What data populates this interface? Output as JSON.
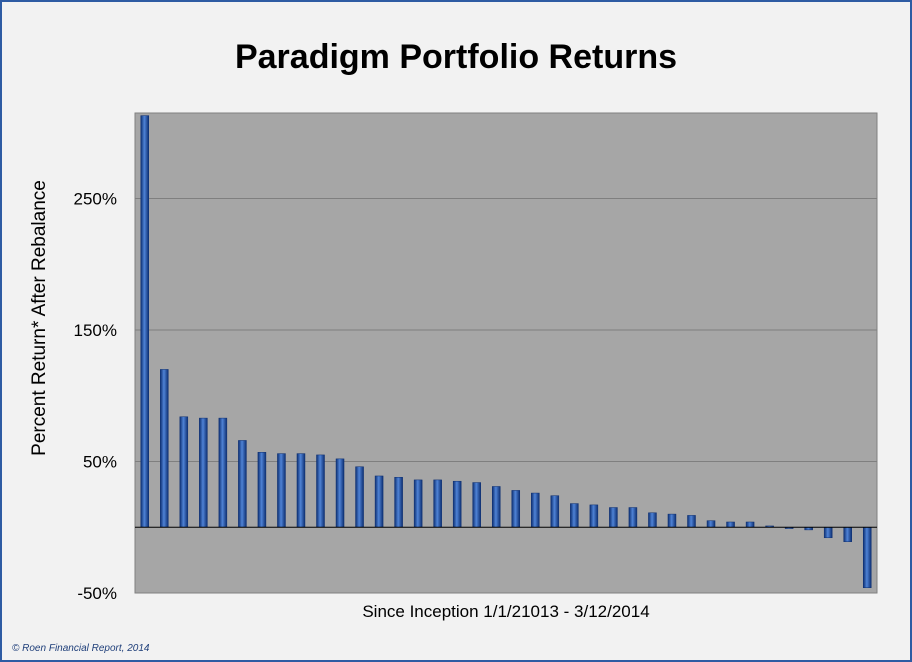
{
  "chart_data": {
    "type": "bar",
    "title": "Paradigm Portfolio Returns",
    "xlabel": "Since Inception 1/1/21013 - 3/12/2014",
    "ylabel": "Percent Return* After Rebalance",
    "yticks": [
      {
        "value": -50,
        "label": "-50%"
      },
      {
        "value": 50,
        "label": "50%"
      },
      {
        "value": 150,
        "label": "150%"
      },
      {
        "value": 250,
        "label": "250%"
      }
    ],
    "ylim": [
      -50,
      315
    ],
    "grid": true,
    "values": [
      313,
      120,
      84,
      83,
      83,
      66,
      57,
      56,
      56,
      55,
      52,
      46,
      39,
      38,
      36,
      36,
      35,
      34,
      31,
      28,
      26,
      24,
      18,
      17,
      15,
      15,
      11,
      10,
      9,
      5,
      4,
      4,
      1,
      -1,
      -2,
      -8,
      -11,
      -46
    ],
    "colors": {
      "plot_bg": "#a6a6a6",
      "bar": "#0d2f72",
      "bar_highlight": "#4f83d6",
      "grid": "#7f7f7f",
      "frame": "#2e5ba3"
    }
  },
  "credit": "© Roen Financial Report, 2014"
}
